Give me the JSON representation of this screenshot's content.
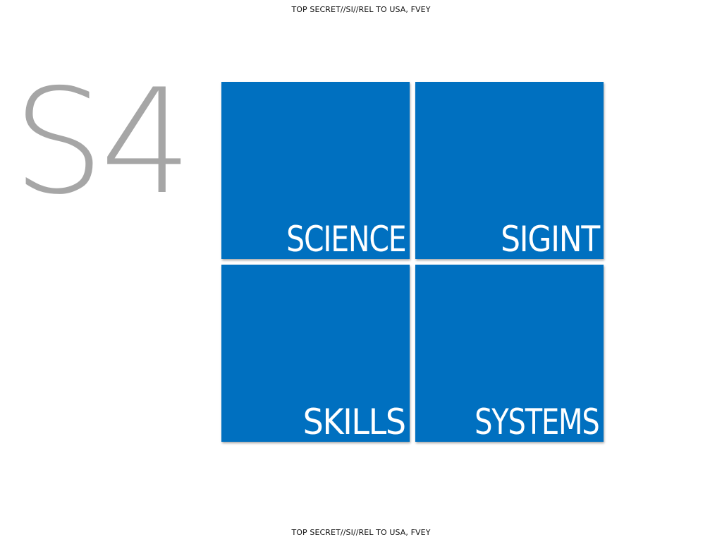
{
  "classification": {
    "top": "TOP SECRET//SI//REL TO USA, FVEY",
    "bottom": "TOP SECRET//SI//REL TO USA, FVEY"
  },
  "logo": {
    "text": "S4"
  },
  "tiles": [
    {
      "label": "SCIENCE"
    },
    {
      "label": "SIGINT"
    },
    {
      "label": "SKILLS"
    },
    {
      "label": "SYSTEMS"
    }
  ],
  "colors": {
    "tile": "#0070c0",
    "logo": "#a6a6a6",
    "background": "#ffffff"
  }
}
